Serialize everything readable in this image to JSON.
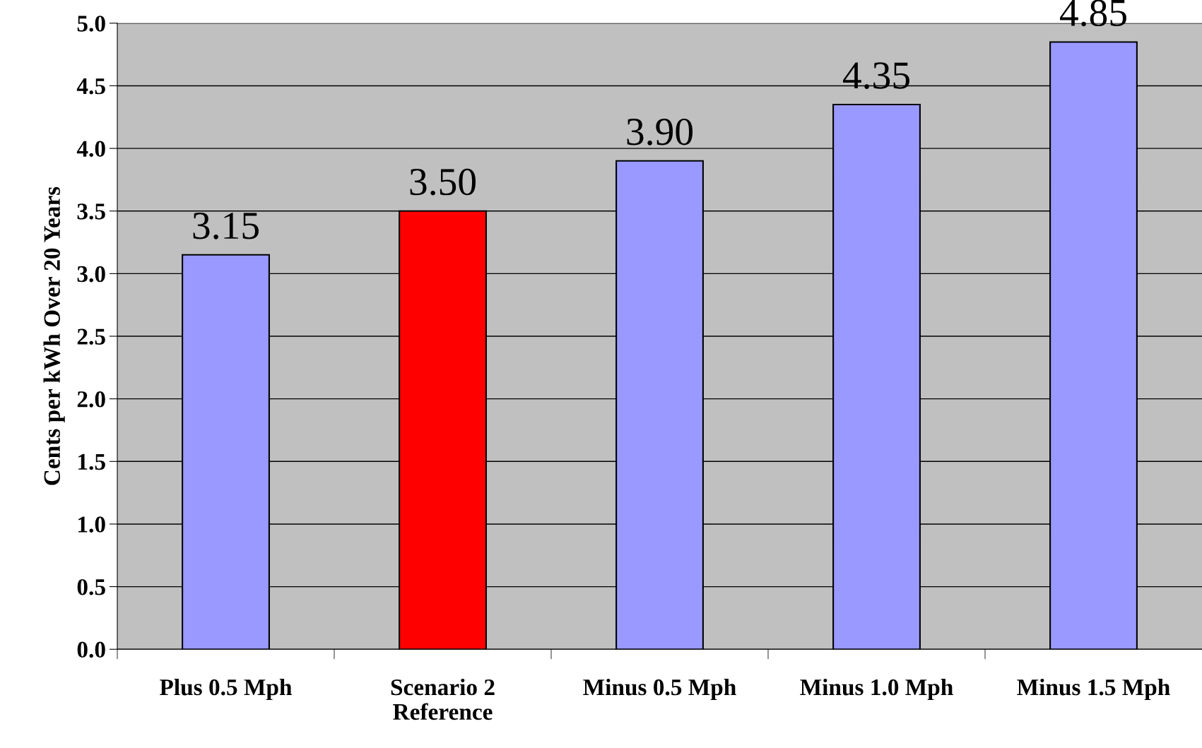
{
  "chart_data": {
    "type": "bar",
    "ylabel": "Cents per kWh Over 20 Years",
    "categories": [
      "Plus 0.5 Mph",
      "Scenario 2\nReference",
      "Minus 0.5 Mph",
      "Minus 1.0 Mph",
      "Minus 1.5 Mph"
    ],
    "values": [
      3.15,
      3.5,
      3.9,
      4.35,
      4.85
    ],
    "colors": [
      "#9999ff",
      "#ff0000",
      "#9999ff",
      "#9999ff",
      "#9999ff"
    ],
    "value_labels": [
      "3.15",
      "3.50",
      "3.90",
      "4.35",
      "4.85"
    ],
    "ylim": [
      0,
      5
    ],
    "yticks": [
      "0.0",
      "0.5",
      "1.0",
      "1.5",
      "2.0",
      "2.5",
      "3.0",
      "3.5",
      "4.0",
      "4.5",
      "5.0"
    ],
    "grid": "y",
    "legend": false
  }
}
